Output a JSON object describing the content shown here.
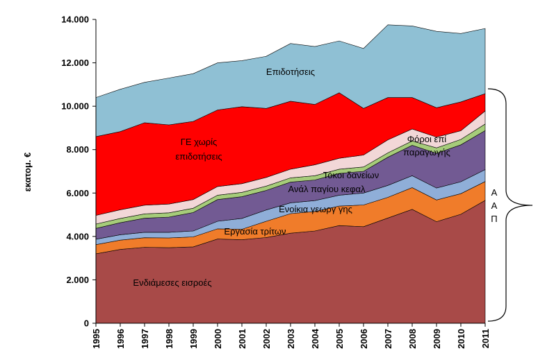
{
  "chart_data": {
    "type": "area",
    "ylabel": "εκατομ. €",
    "ylim": [
      0,
      14000
    ],
    "yticks": [
      0,
      2000,
      4000,
      6000,
      8000,
      10000,
      12000,
      14000
    ],
    "ytick_labels": [
      "0",
      "2.000",
      "4.000",
      "6.000",
      "8.000",
      "10.000",
      "12.000",
      "14.000"
    ],
    "x": [
      "1995",
      "1996",
      "1997",
      "1998",
      "1999",
      "2000",
      "2001",
      "2002",
      "2003",
      "2004",
      "2005",
      "2006",
      "2007",
      "2008",
      "2009",
      "2010",
      "2011"
    ],
    "grid": false,
    "series": [
      {
        "id": "s1",
        "name": "Ενδιάμεσες εισροές",
        "color": "#a84a48",
        "values": [
          3200,
          3400,
          3500,
          3480,
          3520,
          3880,
          3850,
          3950,
          4150,
          4250,
          4500,
          4450,
          4850,
          5250,
          4680,
          5020,
          5660
        ]
      },
      {
        "id": "s2",
        "name": "Εργασία τρίτων",
        "color": "#f07c2a",
        "values": [
          420,
          430,
          440,
          450,
          460,
          470,
          480,
          750,
          900,
          900,
          900,
          1000,
          950,
          1000,
          1000,
          950,
          870
        ]
      },
      {
        "id": "s3",
        "name": "Ενοίκια γεωργ γης",
        "color": "#8faed8",
        "values": [
          250,
          250,
          250,
          260,
          270,
          350,
          500,
          520,
          500,
          500,
          500,
          550,
          550,
          550,
          550,
          550,
          550
        ]
      },
      {
        "id": "s4",
        "name": "Ανάλ παγίου κεφαλ",
        "color": "#725a93",
        "values": [
          500,
          550,
          650,
          700,
          850,
          1000,
          1000,
          900,
          950,
          950,
          1000,
          1000,
          1300,
          1400,
          1600,
          1700,
          1800
        ]
      },
      {
        "id": "s5",
        "name": "Τόκοι δανείων",
        "color": "#a6cc7a",
        "values": [
          200,
          200,
          200,
          200,
          200,
          200,
          200,
          200,
          200,
          200,
          200,
          200,
          200,
          200,
          250,
          250,
          300
        ]
      },
      {
        "id": "s6",
        "name": "Φόροι επί παραγωγής",
        "color": "#f2d7d7",
        "values": [
          400,
          400,
          400,
          400,
          400,
          400,
          400,
          400,
          400,
          500,
          500,
          550,
          600,
          550,
          500,
          400,
          600
        ]
      },
      {
        "id": "s7",
        "name": "ΓΕ χωρίς επιδοτήσεις",
        "color": "#ff0000",
        "values": [
          3630,
          3600,
          3800,
          3650,
          3600,
          3530,
          3550,
          3180,
          3130,
          2780,
          3020,
          2150,
          1950,
          1450,
          1350,
          1330,
          800
        ]
      },
      {
        "id": "s8",
        "name": "Επιδοτήσεις",
        "color": "#8fc0d4",
        "values": [
          1800,
          1950,
          1860,
          2160,
          2200,
          2170,
          2120,
          2400,
          2660,
          2670,
          2390,
          2760,
          3350,
          3300,
          3520,
          3150,
          3000
        ]
      }
    ],
    "annotations": [
      {
        "series": "s1",
        "text": "Ενδιάμεσες εισροές"
      },
      {
        "series": "s2",
        "text": "Εργασία τρίτων"
      },
      {
        "series": "s3",
        "text": "Ενοίκια γεωργ γης"
      },
      {
        "series": "s4",
        "text": "Ανάλ παγίου κεφαλ"
      },
      {
        "series": "s5",
        "text": "Τόκοι δανείων"
      },
      {
        "series": "s6",
        "text": "Φόροι επί"
      },
      {
        "series": "s6",
        "text": "παραγωγής"
      },
      {
        "series": "s7",
        "text": "ΓΕ χωρίς"
      },
      {
        "series": "s7",
        "text": "επιδοτήσεις"
      },
      {
        "series": "s8",
        "text": "Επιδοτήσεις"
      }
    ],
    "bracket_label": [
      "Α",
      "Α",
      "Π"
    ]
  }
}
